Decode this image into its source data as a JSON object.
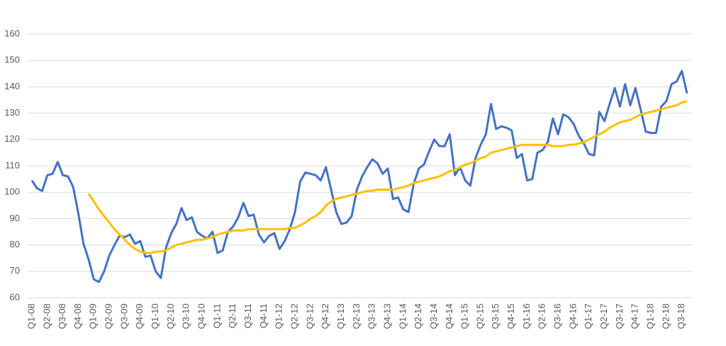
{
  "chart_data": {
    "type": "line",
    "categories": [
      "Q1-08",
      null,
      null,
      "Q2-08",
      null,
      null,
      "Q3-08",
      null,
      null,
      "Q4-08",
      null,
      null,
      "Q1-09",
      null,
      null,
      "Q2-09",
      null,
      null,
      "Q3-09",
      null,
      null,
      "Q4-09",
      null,
      null,
      "Q1-10",
      null,
      null,
      "Q2-10",
      null,
      null,
      "Q3-10",
      null,
      null,
      "Q4-10",
      null,
      null,
      "Q1-11",
      null,
      null,
      "Q2-11",
      null,
      null,
      "Q3-11",
      null,
      null,
      "Q4-11",
      null,
      null,
      "Q1-12",
      null,
      null,
      "Q2-12",
      null,
      null,
      "Q3-12",
      null,
      null,
      "Q4-12",
      null,
      null,
      "Q1-13",
      null,
      null,
      "Q2-13",
      null,
      null,
      "Q3-13",
      null,
      null,
      "Q4-13",
      null,
      null,
      "Q1-14",
      null,
      null,
      "Q2-14",
      null,
      null,
      "Q3-14",
      null,
      null,
      "Q4-14",
      null,
      null,
      "Q1-15",
      null,
      null,
      "Q2-15",
      null,
      null,
      "Q3-15",
      null,
      null,
      "Q4-15",
      null,
      null,
      "Q1-16",
      null,
      null,
      "Q2-16",
      null,
      null,
      "Q3-16",
      null,
      null,
      "Q4-16",
      null,
      null,
      "Q1-17",
      null,
      null,
      "Q2-17",
      null,
      null,
      "Q3-17",
      null,
      null,
      "Q4-17",
      null,
      null,
      "Q1-18",
      null,
      null,
      "Q2-18",
      null,
      null,
      "Q3-18",
      null
    ],
    "series": [
      {
        "color": "#4472c4",
        "values": [
          104.5,
          101.5,
          100.5,
          106.5,
          107,
          111.5,
          106.5,
          106,
          102,
          92,
          80.5,
          74.5,
          67,
          66,
          70,
          76,
          80,
          83.5,
          83,
          84,
          80.5,
          81.5,
          75.5,
          76,
          70,
          67.5,
          79,
          84.5,
          88,
          94,
          89.5,
          90.5,
          85,
          83.5,
          82.5,
          85,
          77,
          78,
          85,
          87,
          90.5,
          96,
          91,
          91.5,
          84,
          81,
          83.5,
          84.5,
          78.5,
          81.5,
          86,
          92.5,
          104,
          107.5,
          107,
          106.5,
          104.5,
          109.5,
          101,
          92.5,
          88,
          88.5,
          91,
          101,
          106,
          109.5,
          112.5,
          111,
          107,
          109,
          97.5,
          98,
          93.5,
          92.5,
          103,
          109,
          110.5,
          115.5,
          120,
          117.5,
          117.5,
          122,
          106.5,
          109.5,
          104.5,
          102.5,
          113,
          118,
          122,
          133.5,
          124,
          125,
          124.5,
          123.5,
          113,
          114.5,
          104.5,
          105,
          115,
          116,
          119,
          128,
          122,
          129.5,
          128.5,
          126,
          121.5,
          118.5,
          114.5,
          114,
          130.5,
          127,
          133.5,
          139.5,
          132.5,
          141,
          133,
          139.5,
          131.5,
          123,
          122.5,
          122.5,
          132.5,
          134.5,
          141,
          142,
          146,
          137.5
        ]
      },
      {
        "color": "#ffc000",
        "values": [
          null,
          null,
          null,
          null,
          null,
          null,
          null,
          null,
          null,
          null,
          null,
          99.5,
          96.5,
          93.5,
          91,
          88.5,
          86,
          84,
          82,
          80,
          78.5,
          77.5,
          77,
          77,
          77.5,
          77.5,
          78,
          79,
          80,
          80.5,
          81,
          81.5,
          82,
          82,
          82.5,
          83,
          84,
          84.5,
          85,
          85.5,
          85.5,
          85.5,
          86,
          86,
          86,
          86,
          86,
          86,
          86,
          86,
          86.5,
          86.5,
          87.5,
          88.5,
          90,
          91,
          92.5,
          95,
          96.5,
          97.5,
          98,
          98.5,
          99,
          99.5,
          100,
          100.5,
          100.5,
          101,
          101,
          101,
          101,
          101.5,
          102,
          102.5,
          103.5,
          104,
          104.5,
          105,
          105.5,
          106,
          107,
          108,
          108.5,
          109.5,
          110.5,
          111,
          112,
          113,
          113.5,
          115,
          115.5,
          116,
          116.5,
          117,
          117.5,
          118,
          118,
          118,
          118,
          118,
          118,
          117.5,
          117.5,
          117.5,
          118,
          118,
          118.5,
          119,
          120,
          121,
          122,
          123,
          124.5,
          125.5,
          126.5,
          127,
          127.5,
          128.5,
          129.5,
          130,
          130.5,
          131,
          131.5,
          132,
          132.5,
          133,
          134,
          134.5
        ]
      }
    ],
    "ylim": [
      60,
      160
    ],
    "yticks": [
      60,
      70,
      80,
      90,
      100,
      110,
      120,
      130,
      140,
      150,
      160
    ],
    "grid": true
  }
}
